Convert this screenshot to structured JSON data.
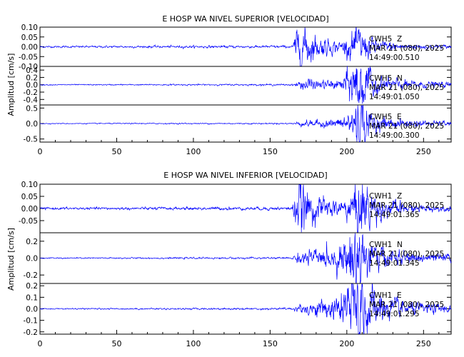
{
  "chart_data": [
    {
      "type": "line",
      "title": "E HOSP WA NIVEL SUPERIOR [VELOCIDAD]",
      "ylabel": "Amplitud [cm/s]",
      "xlim": [
        0,
        268
      ],
      "x_ticks": [
        "0",
        "50",
        "100",
        "150",
        "200",
        "250"
      ],
      "series_color": "#0000ff",
      "traces": [
        {
          "station": "CWH5",
          "component": "Z",
          "date": "MAR 21 (080), 2025",
          "time": "14:49:00.510",
          "ylim": [
            -0.1,
            0.1
          ],
          "y_ticks": [
            "0.10",
            "0.05",
            "0.00",
            "-0.05",
            "-0.10"
          ],
          "envelope": {
            "x": [
              0,
              165,
              166,
              170,
              180,
              195,
              200,
              204,
              208,
              212,
              220,
              240,
              268
            ],
            "amp": [
              0.002,
              0.003,
              0.03,
              0.055,
              0.025,
              0.012,
              0.02,
              0.04,
              0.045,
              0.03,
              0.015,
              0.006,
              0.004
            ]
          }
        },
        {
          "station": "CWH5",
          "component": "N",
          "date": "MAR 21 (080), 2025",
          "time": "14:49:01.050",
          "ylim": [
            -0.55,
            0.5
          ],
          "y_ticks": [
            "0.4",
            "0.2",
            "0.0",
            "-0.2",
            "-0.4"
          ],
          "envelope": {
            "x": [
              0,
              165,
              170,
              173,
              180,
              195,
              202,
              206,
              208,
              212,
              220,
              240,
              268
            ],
            "amp": [
              0.006,
              0.01,
              0.05,
              0.1,
              0.05,
              0.06,
              0.2,
              0.4,
              0.45,
              0.25,
              0.1,
              0.05,
              0.03
            ]
          }
        },
        {
          "station": "CWH5",
          "component": "E",
          "date": "MAR 21 (080), 2025",
          "time": "14:49:00.300",
          "ylim": [
            -0.6,
            0.6
          ],
          "y_ticks": [
            "0.5",
            "0.0",
            "-0.5"
          ],
          "envelope": {
            "x": [
              0,
              165,
              170,
              180,
              195,
              203,
              206,
              208,
              212,
              220,
              240,
              268
            ],
            "amp": [
              0.006,
              0.01,
              0.04,
              0.05,
              0.07,
              0.2,
              0.45,
              0.5,
              0.25,
              0.1,
              0.05,
              0.03
            ]
          }
        }
      ]
    },
    {
      "type": "line",
      "title": "E HOSP WA NIVEL INFERIOR [VELOCIDAD]",
      "ylabel": "Amplitud [cm/s]",
      "xlim": [
        0,
        268
      ],
      "x_ticks": [
        "0",
        "50",
        "100",
        "150",
        "200",
        "250"
      ],
      "series_color": "#0000ff",
      "traces": [
        {
          "station": "CWH1",
          "component": "Z",
          "date": "MAR 21 (080), 2025",
          "time": "14:49:01.365",
          "ylim": [
            -0.1,
            0.1
          ],
          "y_ticks": [
            "0.10",
            "0.05",
            "0.00",
            "-0.05"
          ],
          "envelope": {
            "x": [
              0,
              164,
              166,
              169,
              175,
              190,
              200,
              206,
              210,
              214,
              222,
              240,
              268
            ],
            "amp": [
              0.002,
              0.003,
              0.02,
              0.07,
              0.03,
              0.015,
              0.02,
              0.05,
              0.06,
              0.04,
              0.02,
              0.008,
              0.004
            ]
          }
        },
        {
          "station": "CWH1",
          "component": "N",
          "date": "MAR 21 (080), 2025",
          "time": "14:49:01.345",
          "ylim": [
            -0.3,
            0.3
          ],
          "y_ticks": [
            "0.2",
            "0.0",
            "-0.2"
          ],
          "envelope": {
            "x": [
              0,
              164,
              168,
              175,
              190,
              200,
              205,
              208,
              212,
              220,
              240,
              268
            ],
            "amp": [
              0.003,
              0.005,
              0.03,
              0.04,
              0.05,
              0.1,
              0.22,
              0.25,
              0.15,
              0.06,
              0.03,
              0.02
            ]
          }
        },
        {
          "station": "CWH1",
          "component": "E",
          "date": "MAR 21 (080), 2025",
          "time": "14:49:01.295",
          "ylim": [
            -0.22,
            0.22
          ],
          "y_ticks": [
            "0.2",
            "0.1",
            "0.0",
            "-0.1",
            "-0.2"
          ],
          "envelope": {
            "x": [
              0,
              164,
              168,
              180,
              195,
              202,
              206,
              208,
              212,
              220,
              240,
              268
            ],
            "amp": [
              0.002,
              0.004,
              0.015,
              0.03,
              0.05,
              0.12,
              0.18,
              0.2,
              0.14,
              0.06,
              0.025,
              0.015
            ]
          }
        }
      ]
    }
  ]
}
